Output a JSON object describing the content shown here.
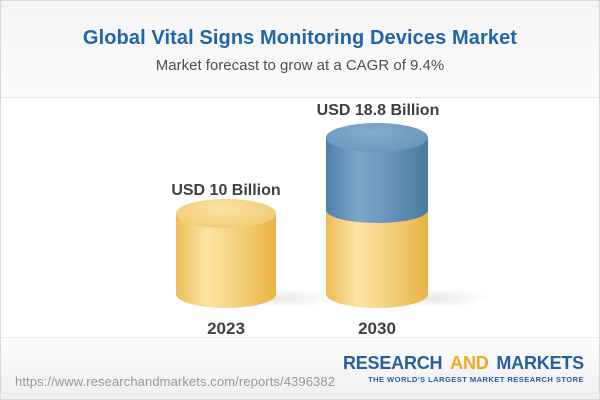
{
  "header": {
    "title": "Global Vital Signs Monitoring Devices Market",
    "subtitle": "Market forecast to grow at a CAGR of 9.4%"
  },
  "chart_data": {
    "type": "bar",
    "style": "3d-cylinder-infographic",
    "categories": [
      "2023",
      "2030"
    ],
    "values": [
      10,
      18.8
    ],
    "value_labels": [
      "USD 10 Billion",
      "USD 18.8 Billion"
    ],
    "unit": "USD Billion",
    "cagr_percent": 9.4,
    "series": [
      {
        "name": "2023 market size (base segment)",
        "values": [
          10,
          10
        ],
        "color": "#f3cf78"
      },
      {
        "name": "growth to 2030 (top segment)",
        "values": [
          0,
          8.8
        ],
        "color": "#6d9ac0"
      }
    ],
    "ylim": [
      0,
      20
    ],
    "grid": false,
    "legend": false,
    "title": "Global Vital Signs Monitoring Devices Market",
    "xlabel": "",
    "ylabel": ""
  },
  "colors": {
    "title_blue": "#2066a7",
    "cylinder_yellow": "#f3cf78",
    "cylinder_blue": "#6d9ac0",
    "logo_blue": "#265f9e",
    "logo_gold": "#f0a81e"
  },
  "footer": {
    "url": "https://www.researchandmarkets.com/reports/4396382",
    "logo": {
      "word1": "RESEARCH",
      "word2": "AND",
      "word3": "MARKETS",
      "tagline": "THE WORLD'S LARGEST MARKET RESEARCH STORE"
    }
  }
}
